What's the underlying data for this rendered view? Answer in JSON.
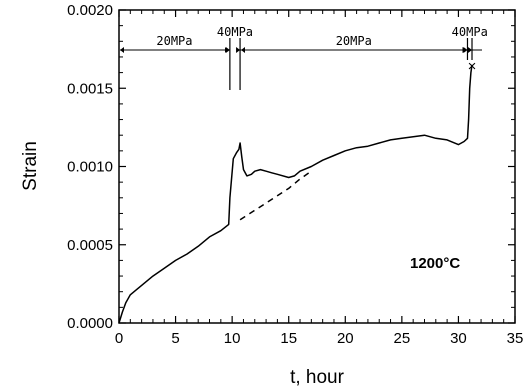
{
  "chart_data": {
    "type": "line",
    "title": "",
    "xlabel": "t, hour",
    "ylabel": "Strain",
    "xlim": [
      0,
      35
    ],
    "ylim": [
      0,
      0.002
    ],
    "x_ticks": [
      "0",
      "5",
      "10",
      "15",
      "20",
      "25",
      "30",
      "35"
    ],
    "y_ticks": [
      "0.0000",
      "0.0005",
      "0.0010",
      "0.0015",
      "0.0020"
    ],
    "grid": false,
    "series": [
      {
        "style": "solid",
        "x": [
          0,
          0.3,
          0.6,
          1,
          1.5,
          2,
          3,
          4,
          5,
          6,
          7,
          8,
          9,
          9.7,
          9.8,
          10.1,
          10.4,
          10.6,
          10.7,
          10.85,
          11.0,
          11.3,
          11.7,
          12,
          12.5,
          13,
          13.5,
          14,
          15,
          15.5,
          16,
          17,
          18,
          19,
          20,
          21,
          22,
          23,
          24,
          25,
          26,
          27,
          28,
          29,
          30,
          30.5,
          30.8,
          30.9,
          31.0,
          31.1,
          31.2
        ],
        "y": [
          0,
          7e-05,
          0.00013,
          0.00018,
          0.00021,
          0.00024,
          0.0003,
          0.00035,
          0.0004,
          0.00044,
          0.00049,
          0.00055,
          0.00059,
          0.00063,
          0.0008,
          0.00105,
          0.00109,
          0.00111,
          0.00115,
          0.00106,
          0.00098,
          0.00094,
          0.00095,
          0.00097,
          0.00098,
          0.00097,
          0.00096,
          0.00095,
          0.00093,
          0.00094,
          0.00097,
          0.001,
          0.00104,
          0.00107,
          0.0011,
          0.00112,
          0.00113,
          0.00115,
          0.00117,
          0.00118,
          0.00119,
          0.0012,
          0.00118,
          0.00117,
          0.00114,
          0.00116,
          0.00118,
          0.0013,
          0.0015,
          0.0016,
          0.00165
        ]
      },
      {
        "style": "dashed",
        "x": [
          10.7,
          12,
          13.5,
          15,
          16,
          17
        ],
        "y": [
          0.00066,
          0.00072,
          0.00079,
          0.00086,
          0.00092,
          0.00097
        ]
      }
    ],
    "failure_marker": {
      "x": 31.2,
      "y": 0.00165,
      "symbol": "×"
    },
    "stress_segments": [
      {
        "label": "20MPa",
        "from": 0,
        "to": 9.8
      },
      {
        "label": "40MPa",
        "from": 9.8,
        "to": 10.7
      },
      {
        "label": "20MPa",
        "from": 10.7,
        "to": 30.8
      },
      {
        "label": "40MPa",
        "from": 30.8,
        "to": 31.2
      }
    ],
    "annotation": "1200°C"
  }
}
